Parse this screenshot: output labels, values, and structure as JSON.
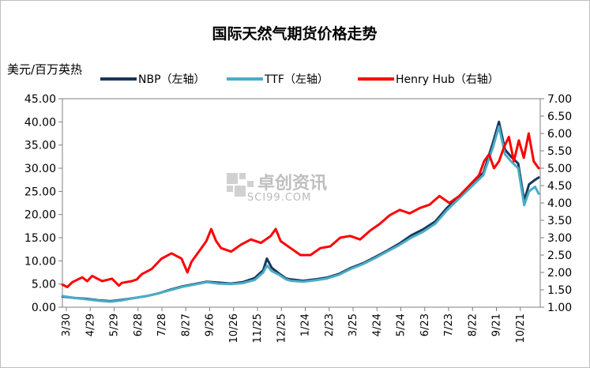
{
  "chart_data": {
    "type": "line",
    "title": "国际天然气期货价格走势",
    "y_left_label": "美元/百万英热",
    "y_left_lim": [
      0,
      45
    ],
    "y_left_ticks": [
      "0.00",
      "5.00",
      "10.00",
      "15.00",
      "20.00",
      "25.00",
      "30.00",
      "35.00",
      "40.00",
      "45.00"
    ],
    "y_right_lim": [
      1.0,
      7.0
    ],
    "y_right_ticks": [
      "1.00",
      "1.50",
      "2.00",
      "2.50",
      "3.00",
      "3.50",
      "4.00",
      "4.50",
      "5.00",
      "5.50",
      "6.00",
      "6.50",
      "7.00"
    ],
    "x_ticks": [
      "3/30",
      "4/29",
      "5/29",
      "6/28",
      "7/28",
      "8/27",
      "9/26",
      "10/26",
      "11/25",
      "12/25",
      "1/24",
      "2/23",
      "3/25",
      "4/24",
      "5/24",
      "6/23",
      "7/23",
      "8/22",
      "9/21",
      "10/21"
    ],
    "legend_position": "top",
    "grid": false,
    "series": [
      {
        "name": "NBP（左轴）",
        "axis": "left",
        "color": "#17365d",
        "points": [
          [
            0,
            2.3
          ],
          [
            1,
            2.0
          ],
          [
            2,
            1.8
          ],
          [
            3,
            1.5
          ],
          [
            4,
            1.3
          ],
          [
            5,
            1.6
          ],
          [
            6,
            2.0
          ],
          [
            7,
            2.4
          ],
          [
            8,
            3.0
          ],
          [
            9,
            3.8
          ],
          [
            10,
            4.5
          ],
          [
            11,
            5.0
          ],
          [
            12,
            5.5
          ],
          [
            13,
            5.3
          ],
          [
            14,
            5.1
          ],
          [
            15,
            5.4
          ],
          [
            16,
            6.3
          ],
          [
            16.7,
            8.0
          ],
          [
            17,
            10.5
          ],
          [
            17.4,
            8.5
          ],
          [
            18,
            7.3
          ],
          [
            18.6,
            6.2
          ],
          [
            19,
            6.0
          ],
          [
            20,
            5.7
          ],
          [
            21,
            6.0
          ],
          [
            22,
            6.4
          ],
          [
            23,
            7.2
          ],
          [
            24,
            8.5
          ],
          [
            25,
            9.5
          ],
          [
            26,
            10.8
          ],
          [
            27,
            12.2
          ],
          [
            28,
            13.7
          ],
          [
            29,
            15.5
          ],
          [
            30,
            16.8
          ],
          [
            31,
            18.5
          ],
          [
            32,
            21.5
          ],
          [
            33,
            24.0
          ],
          [
            34,
            26.5
          ],
          [
            35,
            29.0
          ],
          [
            35.8,
            35.5
          ],
          [
            36.3,
            40.0
          ],
          [
            36.8,
            34.0
          ],
          [
            37.3,
            32.5
          ],
          [
            37.9,
            31.0
          ],
          [
            38.4,
            23.0
          ],
          [
            38.8,
            26.5
          ],
          [
            39.3,
            27.5
          ],
          [
            39.6,
            28.0
          ]
        ]
      },
      {
        "name": "TTF（左轴）",
        "axis": "left",
        "color": "#4bacc6",
        "points": [
          [
            0,
            2.4
          ],
          [
            1,
            2.0
          ],
          [
            2,
            1.7
          ],
          [
            3,
            1.4
          ],
          [
            4,
            1.2
          ],
          [
            5,
            1.5
          ],
          [
            6,
            2.0
          ],
          [
            7,
            2.4
          ],
          [
            8,
            3.0
          ],
          [
            9,
            3.7
          ],
          [
            10,
            4.4
          ],
          [
            11,
            4.9
          ],
          [
            12,
            5.4
          ],
          [
            13,
            5.1
          ],
          [
            14,
            5.0
          ],
          [
            15,
            5.2
          ],
          [
            16,
            5.9
          ],
          [
            16.7,
            7.5
          ],
          [
            17,
            9.0
          ],
          [
            17.4,
            7.8
          ],
          [
            18,
            7.0
          ],
          [
            18.6,
            6.0
          ],
          [
            19,
            5.7
          ],
          [
            20,
            5.5
          ],
          [
            21,
            5.8
          ],
          [
            22,
            6.2
          ],
          [
            23,
            7.0
          ],
          [
            24,
            8.3
          ],
          [
            25,
            9.3
          ],
          [
            26,
            10.6
          ],
          [
            27,
            12.0
          ],
          [
            28,
            13.4
          ],
          [
            29,
            15.0
          ],
          [
            30,
            16.3
          ],
          [
            31,
            18.0
          ],
          [
            32,
            21.0
          ],
          [
            33,
            23.5
          ],
          [
            34,
            26.0
          ],
          [
            35,
            28.5
          ],
          [
            35.8,
            34.5
          ],
          [
            36.3,
            39.0
          ],
          [
            36.8,
            33.0
          ],
          [
            37.3,
            31.5
          ],
          [
            37.9,
            30.0
          ],
          [
            38.4,
            22.0
          ],
          [
            38.8,
            25.0
          ],
          [
            39.3,
            26.0
          ],
          [
            39.6,
            24.5
          ]
        ]
      },
      {
        "name": "Henry Hub（右轴）",
        "axis": "right",
        "color": "#ff0000",
        "points": [
          [
            0,
            1.65
          ],
          [
            0.5,
            1.58
          ],
          [
            1,
            1.72
          ],
          [
            2,
            1.86
          ],
          [
            2.5,
            1.75
          ],
          [
            3,
            1.9
          ],
          [
            4,
            1.75
          ],
          [
            5,
            1.82
          ],
          [
            5.7,
            1.62
          ],
          [
            6,
            1.7
          ],
          [
            7,
            1.75
          ],
          [
            7.5,
            1.8
          ],
          [
            8,
            1.95
          ],
          [
            9,
            2.1
          ],
          [
            10,
            2.4
          ],
          [
            11,
            2.55
          ],
          [
            12,
            2.4
          ],
          [
            12.6,
            2.0
          ],
          [
            13,
            2.3
          ],
          [
            14,
            2.7
          ],
          [
            14.5,
            2.9
          ],
          [
            15,
            3.25
          ],
          [
            15.5,
            2.9
          ],
          [
            16,
            2.7
          ],
          [
            17,
            2.6
          ],
          [
            18,
            2.8
          ],
          [
            19,
            2.95
          ],
          [
            20,
            2.85
          ],
          [
            21,
            3.05
          ],
          [
            21.5,
            3.25
          ],
          [
            22,
            2.9
          ],
          [
            23,
            2.7
          ],
          [
            24,
            2.5
          ],
          [
            25,
            2.5
          ],
          [
            26,
            2.7
          ],
          [
            27,
            2.75
          ],
          [
            28,
            3.0
          ],
          [
            29,
            3.05
          ],
          [
            30,
            2.95
          ],
          [
            31,
            3.2
          ],
          [
            32,
            3.4
          ],
          [
            33,
            3.65
          ],
          [
            34,
            3.8
          ],
          [
            35,
            3.7
          ],
          [
            36,
            3.85
          ],
          [
            37,
            3.95
          ],
          [
            38,
            4.2
          ],
          [
            39,
            4.0
          ],
          [
            40,
            4.2
          ],
          [
            41,
            4.5
          ],
          [
            42,
            4.8
          ],
          [
            42.5,
            5.2
          ],
          [
            43,
            5.4
          ],
          [
            43.5,
            5.0
          ],
          [
            44,
            5.2
          ],
          [
            44.5,
            5.6
          ],
          [
            45,
            5.9
          ],
          [
            45.5,
            5.2
          ],
          [
            46,
            5.8
          ],
          [
            46.5,
            5.3
          ],
          [
            47,
            6.0
          ],
          [
            47.5,
            5.2
          ],
          [
            48,
            5.0
          ]
        ]
      }
    ]
  }
}
